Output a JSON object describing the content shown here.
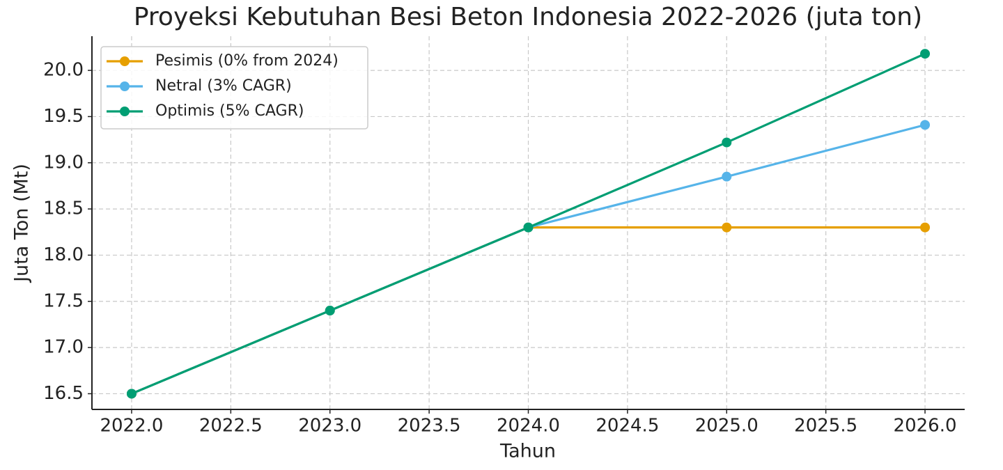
{
  "chart_data": {
    "type": "line",
    "title": "Proyeksi Kebutuhan Besi Beton Indonesia 2022-2026 (juta ton)",
    "xlabel": "Tahun",
    "ylabel": "Juta Ton (Mt)",
    "x": [
      2022,
      2023,
      2024,
      2025,
      2026
    ],
    "series": [
      {
        "name": "Pesimis (0% from 2024)",
        "color": "#e69f00",
        "values": [
          16.5,
          17.4,
          18.3,
          18.3,
          18.3
        ]
      },
      {
        "name": "Netral (3% CAGR)",
        "color": "#56b4e9",
        "values": [
          16.5,
          17.4,
          18.3,
          18.85,
          19.41
        ]
      },
      {
        "name": "Optimis (5% CAGR)",
        "color": "#009e73",
        "values": [
          16.5,
          17.4,
          18.3,
          19.22,
          20.18
        ]
      }
    ],
    "xlim": [
      2021.8,
      2026.2
    ],
    "xticks": [
      {
        "value": 2022,
        "label": "2022.0"
      },
      2022.5,
      {
        "value": 2023,
        "label": "2023.0"
      },
      2023.5,
      {
        "value": 2024,
        "label": "2024.0"
      },
      2024.5,
      {
        "value": 2025,
        "label": "2025.0"
      },
      2025.5,
      {
        "value": 2026,
        "label": "2026.0"
      }
    ],
    "ylim": [
      16.33,
      20.37
    ],
    "yticks": [
      16.5,
      {
        "value": 17,
        "label": "17.0"
      },
      17.5,
      {
        "value": 18,
        "label": "18.0"
      },
      18.5,
      {
        "value": 19,
        "label": "19.0"
      },
      19.5,
      {
        "value": 20,
        "label": "20.0"
      }
    ],
    "grid": true,
    "legend": "upper left"
  }
}
